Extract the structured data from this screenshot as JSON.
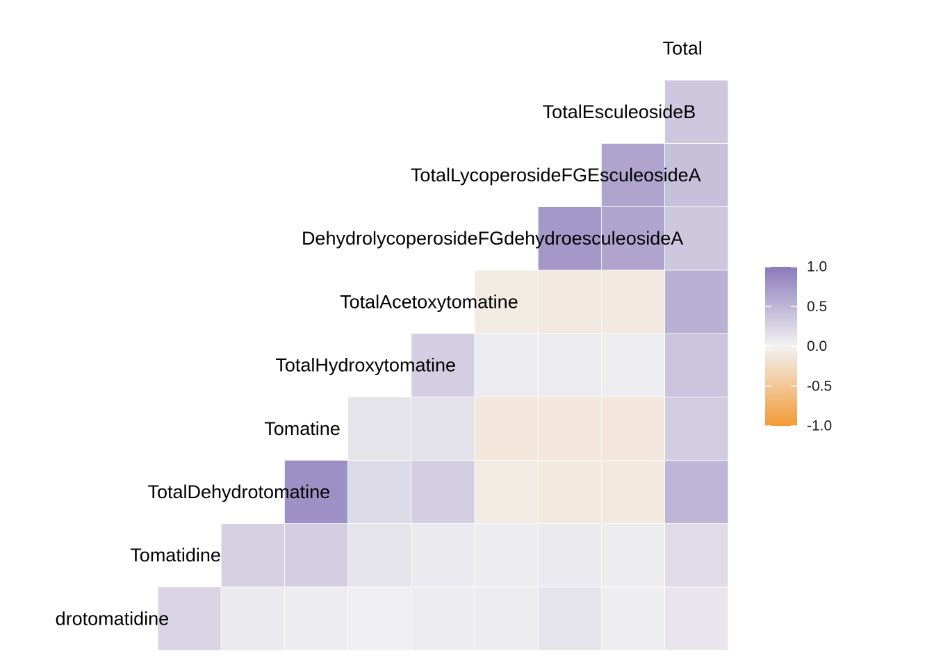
{
  "chart_data": {
    "type": "heatmap",
    "title": "",
    "variables": [
      "drotomatidine",
      "Tomatidine",
      "TotalDehydrotomatine",
      "Tomatine",
      "TotalHydroxytomatine",
      "TotalAcetoxytomatine",
      "DehydrolycoperosideFGdehydroesculeosideA",
      "TotalLycoperosideFGEsculeosideA",
      "TotalEsculeosideB",
      "Total"
    ],
    "matrix": [
      [
        0.25,
        0.07,
        0.05,
        0.03,
        0.05,
        0.06,
        0.12,
        0.04,
        0.1
      ],
      [
        null,
        0.28,
        0.3,
        0.12,
        0.07,
        0.05,
        0.07,
        0.05,
        0.18
      ],
      [
        null,
        null,
        0.82,
        0.2,
        0.3,
        -0.08,
        -0.1,
        -0.11,
        0.5
      ],
      [
        null,
        null,
        null,
        0.12,
        0.14,
        -0.13,
        -0.13,
        -0.13,
        0.32
      ],
      [
        null,
        null,
        null,
        null,
        0.3,
        0.06,
        0.06,
        0.04,
        0.38
      ],
      [
        null,
        null,
        null,
        null,
        null,
        -0.08,
        -0.09,
        -0.09,
        0.55
      ],
      [
        null,
        null,
        null,
        null,
        null,
        null,
        0.75,
        0.65,
        0.35
      ],
      [
        null,
        null,
        null,
        null,
        null,
        null,
        null,
        0.65,
        0.42
      ],
      [
        null,
        null,
        null,
        null,
        null,
        null,
        null,
        null,
        0.35
      ]
    ],
    "legend": {
      "position": "right",
      "ticks": [
        "1.0",
        "0.5",
        "0.0",
        "-0.5",
        "-1.0"
      ],
      "range": [
        -1,
        1
      ],
      "colors": {
        "low": "#f29a36",
        "mid": "#f2f2f2",
        "high": "#8a7aba"
      }
    }
  }
}
